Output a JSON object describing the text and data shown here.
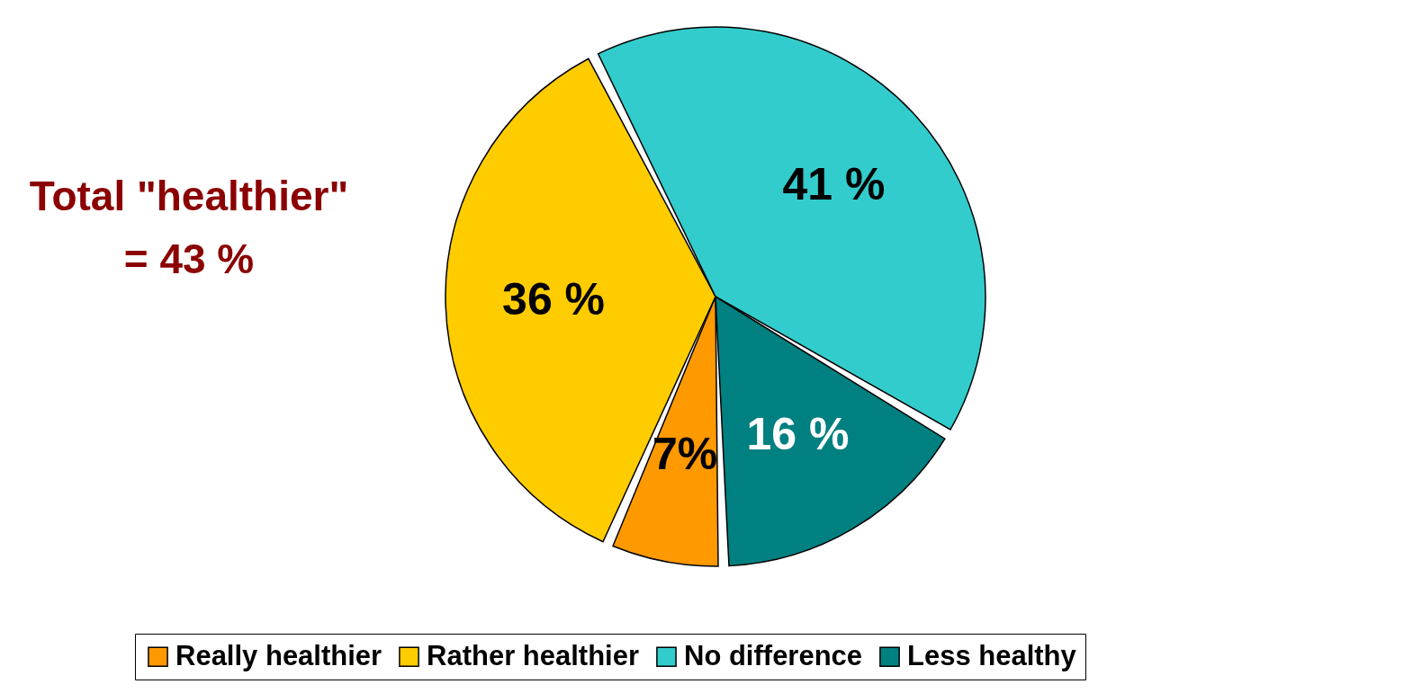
{
  "chart_data": {
    "type": "pie",
    "categories": [
      "Really healthier",
      "Rather healthier",
      "No difference",
      "Less healthy"
    ],
    "values": [
      7,
      36,
      41,
      16
    ],
    "colors": [
      "#ff9900",
      "#ffcc00",
      "#33cccc",
      "#008080"
    ],
    "value_labels": [
      "7%",
      "36 %",
      "41 %",
      "16 %"
    ],
    "annotations": [
      "Total \"healthier\"",
      "= 43 %"
    ],
    "legend": "bottom"
  }
}
